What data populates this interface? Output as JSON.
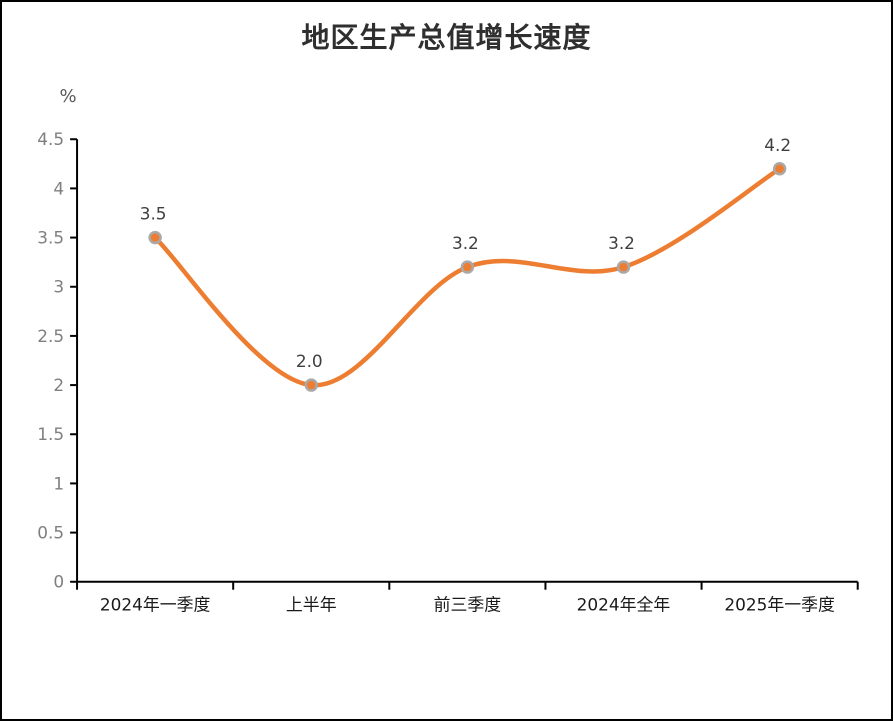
{
  "chart_data": {
    "type": "line",
    "title": "地区生产总值增长速度",
    "ylabel": "%",
    "xlabel": "",
    "categories": [
      "2024年一季度",
      "上半年",
      "前三季度",
      "2024年全年",
      "2025年一季度"
    ],
    "series": [
      {
        "name": "地区生产总值增长速度",
        "values": [
          3.5,
          2.0,
          3.2,
          3.2,
          4.2
        ],
        "value_labels": [
          "3.5",
          "2.0",
          "3.2",
          "3.2",
          "4.2"
        ]
      }
    ],
    "ylim": [
      0,
      4.5
    ],
    "ytick_labels": [
      "0",
      "0.5",
      "1",
      "1.5",
      "2",
      "2.5",
      "3",
      "3.5",
      "4",
      "4.5"
    ],
    "grid": false,
    "legend_position": "none",
    "smooth": true,
    "style": {
      "line_color": "#ED7D31",
      "marker_fill": "#ED7D31",
      "marker_edge": "#A9A9A9",
      "axis_color": "#000000",
      "title_color": "#2f2f2f",
      "ytick_color": "#7f7f7f",
      "xtick_color": "#1a1a1a",
      "value_label_color": "#3f3f3f",
      "background": "#ffffff",
      "border_color": "#000000"
    }
  }
}
